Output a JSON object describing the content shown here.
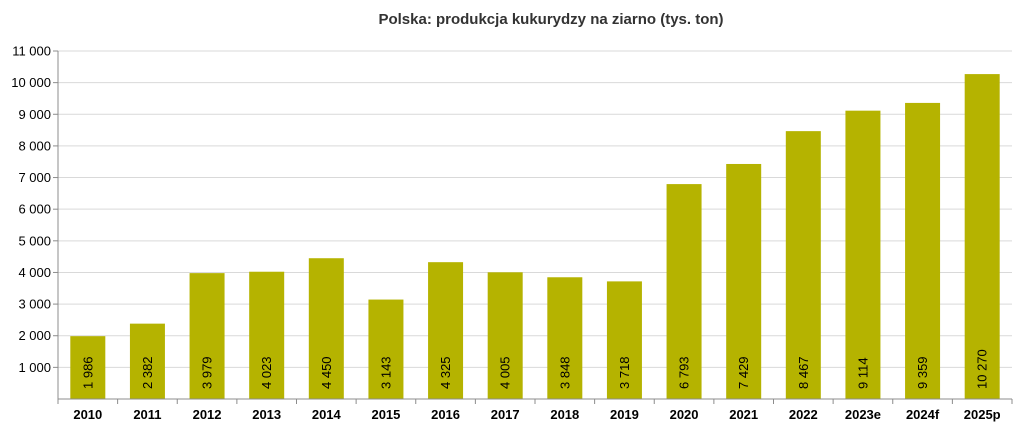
{
  "chart_data": {
    "type": "bar",
    "title": "Polska: produkcja kukurydzy na ziarno  (tys. ton)",
    "categories": [
      "2010",
      "2011",
      "2012",
      "2013",
      "2014",
      "2015",
      "2016",
      "2017",
      "2018",
      "2019",
      "2020",
      "2021",
      "2022",
      "2023e",
      "2024f",
      "2025p"
    ],
    "values": [
      1986,
      2382,
      3979,
      4023,
      4450,
      3143,
      4325,
      4005,
      3848,
      3718,
      6793,
      7429,
      8467,
      9114,
      9359,
      10270
    ],
    "value_labels": [
      "1 986",
      "2 382",
      "3 979",
      "4 023",
      "4 450",
      "3 143",
      "4 325",
      "4 005",
      "3 848",
      "3 718",
      "6 793",
      "7 429",
      "8 467",
      "9 114",
      "9 359",
      "10 270"
    ],
    "ylim": [
      0,
      11000
    ],
    "yticks": [
      1000,
      2000,
      3000,
      4000,
      5000,
      6000,
      7000,
      8000,
      9000,
      10000,
      11000
    ],
    "ytick_labels": [
      "1 000",
      "2 000",
      "3 000",
      "4 000",
      "5 000",
      "6 000",
      "7 000",
      "8 000",
      "9 000",
      "10 000",
      "11 000"
    ],
    "grid": "horizontal",
    "legend": "none",
    "bar_color": "#b5b300",
    "grid_color": "#d9d9d9",
    "axis_color": "#8c8c8c",
    "text_color": "#000000"
  }
}
